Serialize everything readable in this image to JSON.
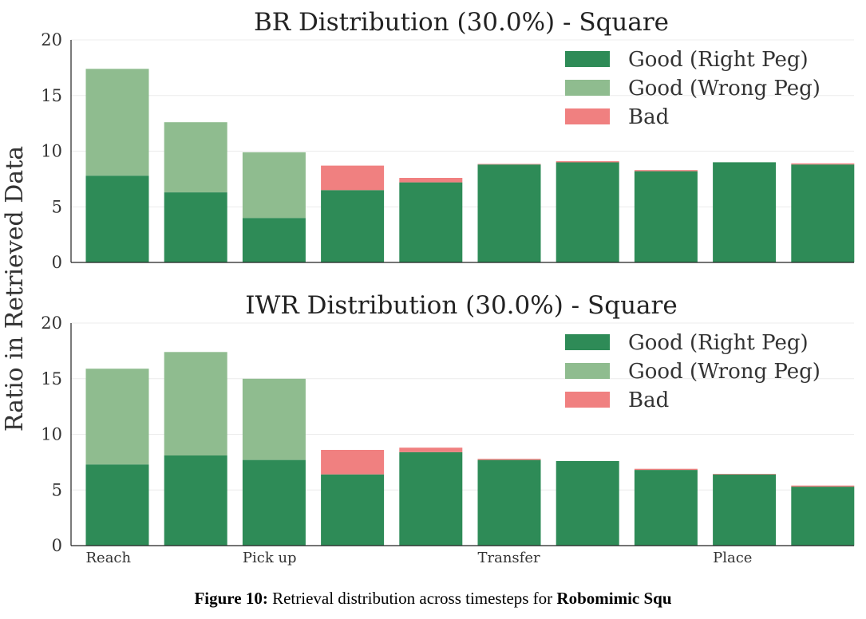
{
  "ylabel": "Ratio in Retrieved Data",
  "x_labels": [
    "Reach",
    "Pick up",
    "Transfer",
    "Place"
  ],
  "legend": [
    "Good (Right Peg)",
    "Good (Wrong Peg)",
    "Bad"
  ],
  "colors": {
    "good_right": "#2e8b57",
    "good_wrong": "#8fbc8f",
    "bad": "#f08080"
  },
  "caption": {
    "label": "Figure 10:",
    "text": " Retrieval distribution across timesteps for ",
    "bold": "Robomimic Squ"
  },
  "chart_data": [
    {
      "type": "bar",
      "stacked": true,
      "title": "BR Distribution (30.0%) - Square",
      "ylim": [
        0,
        20
      ],
      "yticks": [
        0,
        5,
        10,
        15,
        20
      ],
      "series": [
        {
          "name": "Good (Right Peg)",
          "values": [
            7.8,
            6.3,
            4.0,
            6.5,
            7.2,
            8.8,
            9.0,
            8.2,
            9.0,
            8.8
          ]
        },
        {
          "name": "Good (Wrong Peg)",
          "values": [
            9.6,
            6.3,
            5.9,
            0,
            0,
            0,
            0,
            0,
            0,
            0
          ]
        },
        {
          "name": "Bad",
          "values": [
            0,
            0,
            0,
            2.2,
            0.4,
            0.05,
            0.1,
            0.1,
            0,
            0.1
          ]
        }
      ],
      "legend_position": "top-right"
    },
    {
      "type": "bar",
      "stacked": true,
      "title": "IWR Distribution (30.0%) - Square",
      "ylim": [
        0,
        20
      ],
      "yticks": [
        0,
        5,
        10,
        15,
        20
      ],
      "series": [
        {
          "name": "Good (Right Peg)",
          "values": [
            7.3,
            8.1,
            7.7,
            6.4,
            8.4,
            7.7,
            7.6,
            6.8,
            6.4,
            5.3
          ]
        },
        {
          "name": "Good (Wrong Peg)",
          "values": [
            8.6,
            9.3,
            7.3,
            0,
            0,
            0,
            0,
            0,
            0,
            0
          ]
        },
        {
          "name": "Bad",
          "values": [
            0,
            0,
            0,
            2.2,
            0.4,
            0.1,
            0,
            0.1,
            0.05,
            0.1
          ]
        }
      ],
      "legend_position": "top-right"
    }
  ]
}
